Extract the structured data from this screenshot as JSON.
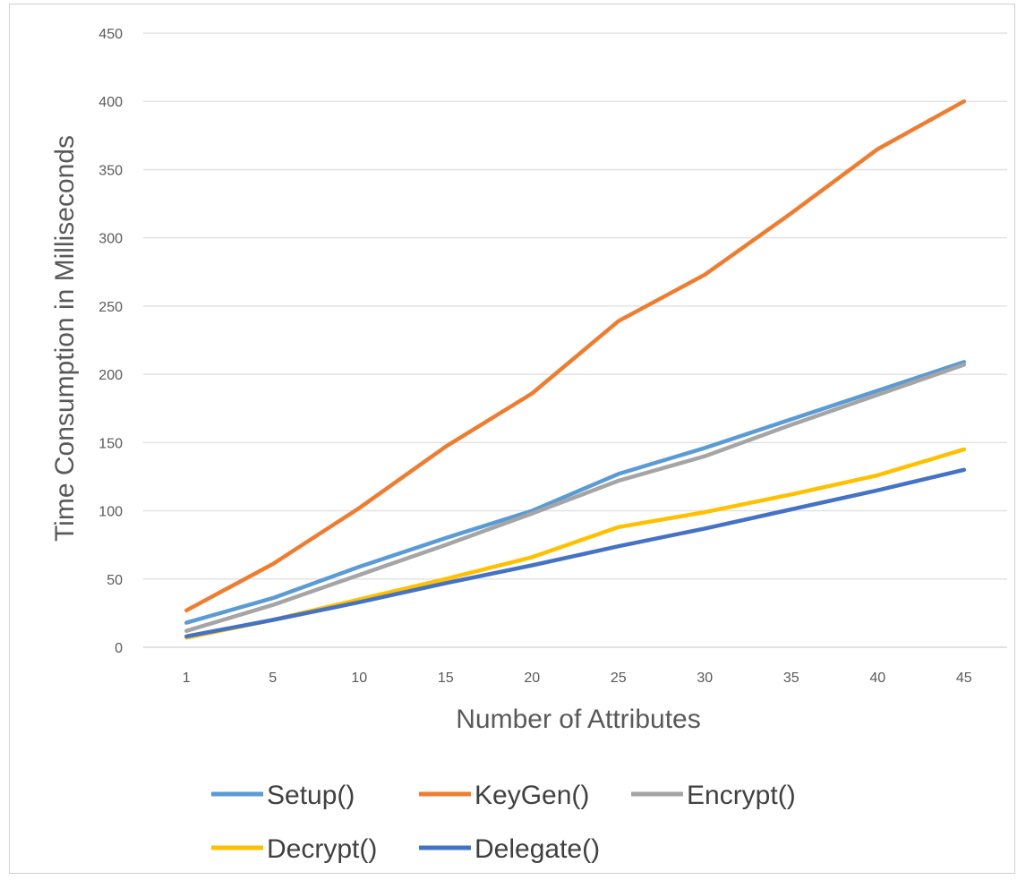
{
  "chart_data": {
    "type": "line",
    "xlabel": "Number of Attributes",
    "ylabel": "Time Consumption in Milliseconds",
    "categories": [
      "1",
      "5",
      "10",
      "15",
      "20",
      "25",
      "30",
      "35",
      "40",
      "45"
    ],
    "ylim": [
      0,
      450
    ],
    "yticks": [
      0,
      50,
      100,
      150,
      200,
      250,
      300,
      350,
      400,
      450
    ],
    "grid": true,
    "legend": "bottom",
    "series": [
      {
        "name": "Setup()",
        "color": "#5b9bd5",
        "values": [
          18,
          36,
          59,
          80,
          100,
          127,
          146,
          167,
          188,
          209
        ]
      },
      {
        "name": "KeyGen()",
        "color": "#ed7d31",
        "values": [
          27,
          61,
          102,
          147,
          186,
          239,
          273,
          318,
          365,
          400
        ]
      },
      {
        "name": "Encrypt()",
        "color": "#a5a5a5",
        "values": [
          12,
          31,
          53,
          75,
          98,
          122,
          140,
          163,
          185,
          207
        ]
      },
      {
        "name": "Decrypt()",
        "color": "#ffc000",
        "values": [
          7,
          20,
          35,
          50,
          66,
          88,
          99,
          112,
          126,
          145
        ]
      },
      {
        "name": "Delegate()",
        "color": "#4472c4",
        "values": [
          8,
          20,
          33,
          47,
          60,
          74,
          87,
          101,
          115,
          130
        ]
      }
    ]
  }
}
